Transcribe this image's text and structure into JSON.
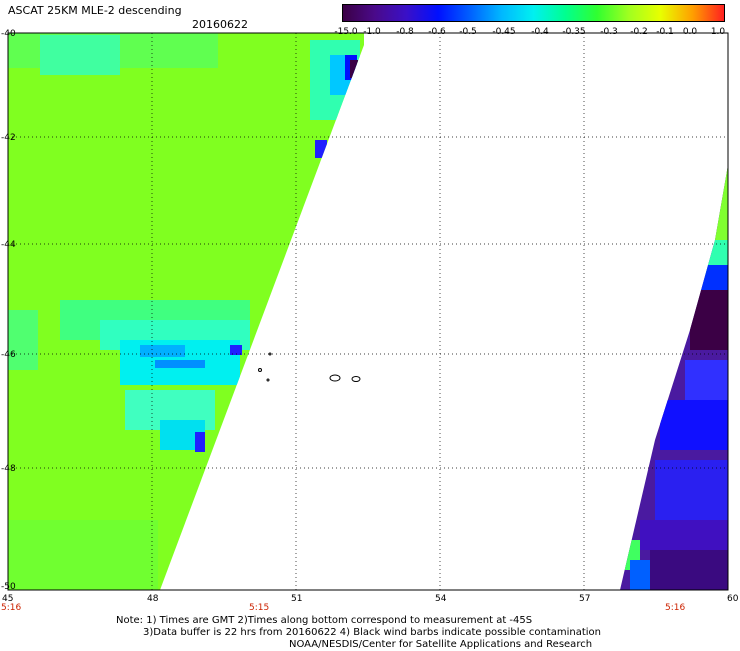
{
  "header": {
    "title": "ASCAT 25KM MLE-2 descending",
    "date": "20160622"
  },
  "colorbar": {
    "labels": [
      "-15.0",
      "-1.0",
      "-0.8",
      "-0.6",
      "-0.5",
      "-0.45",
      "-0.4",
      "-0.35",
      "-0.3",
      "-0.2",
      "-0.1",
      "0.0",
      "1.0"
    ],
    "colors": [
      "#3b0045",
      "#4a0a8a",
      "#3a10c8",
      "#0010ff",
      "#0060ff",
      "#00b8ff",
      "#00f0f0",
      "#00ff90",
      "#30ff30",
      "#a0ff20",
      "#e8ff00",
      "#ffa000",
      "#ff2020"
    ]
  },
  "axes": {
    "lat_labels": [
      "-40",
      "-42",
      "-44",
      "-46",
      "-48",
      "-50"
    ],
    "lon_labels": [
      "45",
      "48",
      "51",
      "54",
      "57",
      "60"
    ],
    "time_labels": [
      "5:16",
      "5:15",
      "5:16"
    ]
  },
  "notes": {
    "line1": "Note: 1) Times are GMT 2)Times along bottom correspond to measurement at -45S",
    "line2": "3)Data buffer is 22 hrs from 20160622 4) Black wind barbs indicate possible contamination",
    "line3": "NOAA/NESDIS/Center for Satellite Applications and Research"
  }
}
